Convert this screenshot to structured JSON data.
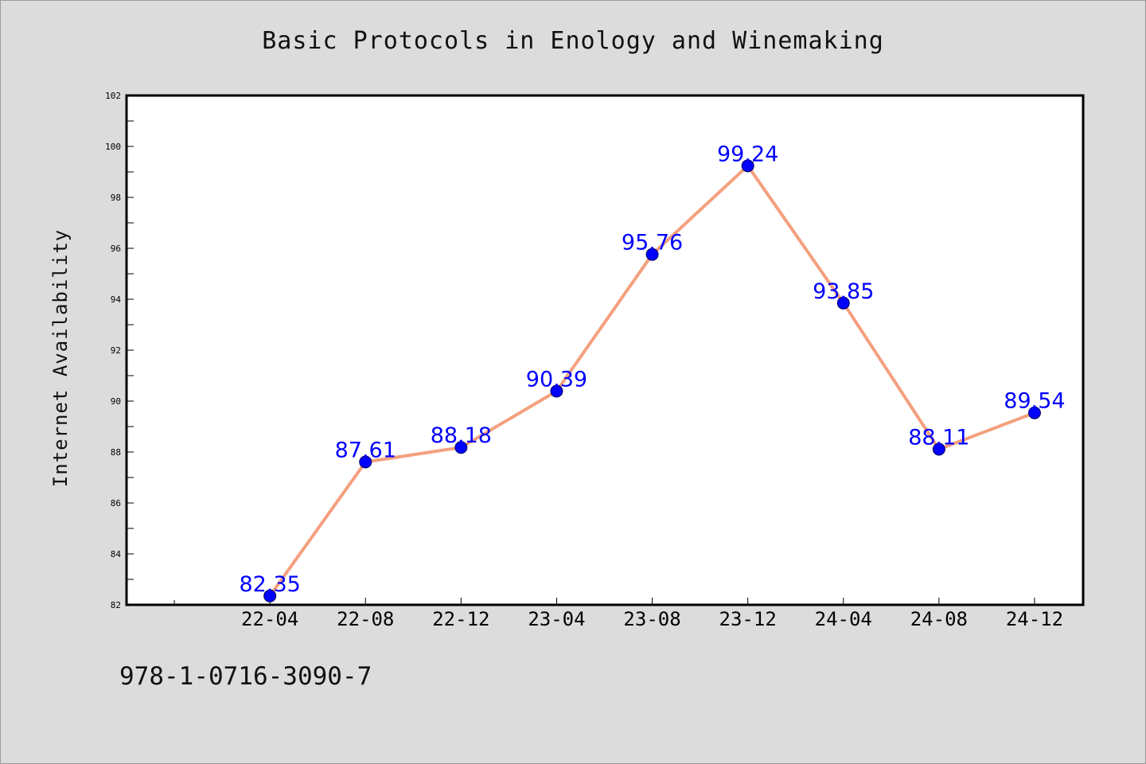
{
  "chart_data": {
    "type": "line",
    "title": "Basic Protocols in Enology and Winemaking",
    "xlabel": "",
    "ylabel": "Internet Availability",
    "categories": [
      "22-04",
      "22-08",
      "22-12",
      "23-04",
      "23-08",
      "23-12",
      "24-04",
      "24-08",
      "24-12"
    ],
    "values": [
      82.35,
      87.61,
      88.18,
      90.39,
      95.76,
      99.24,
      93.85,
      88.11,
      89.54
    ],
    "data_labels": [
      "82.35",
      "87.61",
      "88.18",
      "90.39",
      "95.76",
      "99.24",
      "93.85",
      "88.11",
      "89.54"
    ],
    "ylim": [
      82,
      102
    ],
    "y_ticks": [
      "82",
      "84",
      "86",
      "88",
      "90",
      "92",
      "94",
      "96",
      "98",
      "100",
      "102"
    ],
    "grid": false,
    "line_color": "#f4a07e",
    "marker_color": "#0000ff",
    "label_color": "#0000ff"
  },
  "footer": {
    "code": "978-1-0716-3090-7"
  }
}
